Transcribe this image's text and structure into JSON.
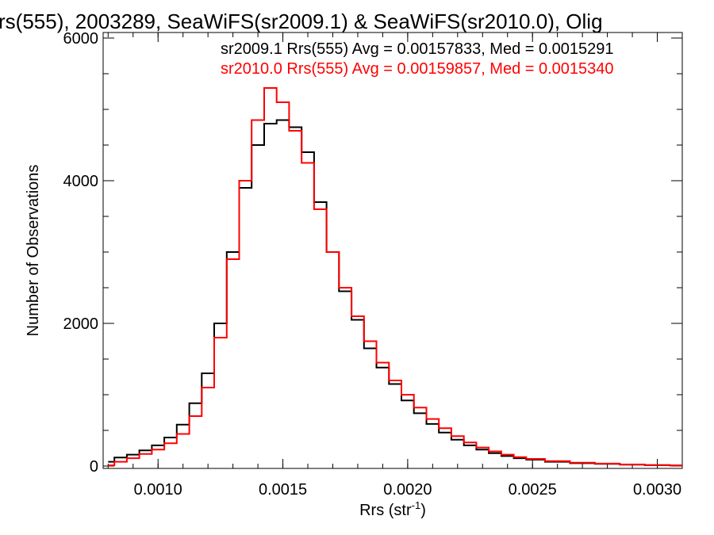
{
  "chart_data": {
    "type": "line",
    "title": "rs(555), 2003289, SeaWiFS(sr2009.1) & SeaWiFS(sr2010.0), Olig",
    "xlabel": "Rrs (str",
    "xlabel_sup": "-1",
    "xlabel_close": ")",
    "ylabel": "Number of Observations",
    "xlim": [
      0.00078,
      0.0031
    ],
    "ylim": [
      0,
      6000
    ],
    "x_ticks": [
      "0.0010",
      "0.0015",
      "0.0020",
      "0.0025",
      "0.0030"
    ],
    "x_tick_values": [
      0.001,
      0.0015,
      0.002,
      0.0025,
      0.003
    ],
    "y_ticks": [
      "0",
      "2000",
      "4000",
      "6000"
    ],
    "y_tick_values": [
      0,
      2000,
      4000,
      6000
    ],
    "grid": false,
    "annotations": [
      {
        "text": "sr2009.1 Rrs(555) Avg = 0.00157833, Med = 0.0015291",
        "color": "#000000"
      },
      {
        "text": "sr2010.0 Rrs(555) Avg = 0.00159857, Med = 0.0015340",
        "color": "#ff0000"
      }
    ],
    "series": [
      {
        "color": "#000000",
        "points": [
          [
            0.0008,
            60
          ],
          [
            0.00085,
            120
          ],
          [
            0.0009,
            160
          ],
          [
            0.00095,
            220
          ],
          [
            0.001,
            290
          ],
          [
            0.00105,
            400
          ],
          [
            0.0011,
            580
          ],
          [
            0.00115,
            880
          ],
          [
            0.0012,
            1300
          ],
          [
            0.00125,
            2000
          ],
          [
            0.0013,
            3000
          ],
          [
            0.00135,
            3900
          ],
          [
            0.0014,
            4500
          ],
          [
            0.00145,
            4800
          ],
          [
            0.0015,
            4850
          ],
          [
            0.00155,
            4750
          ],
          [
            0.0016,
            4400
          ],
          [
            0.00165,
            3700
          ],
          [
            0.0017,
            3000
          ],
          [
            0.00175,
            2450
          ],
          [
            0.0018,
            2050
          ],
          [
            0.00185,
            1650
          ],
          [
            0.0019,
            1380
          ],
          [
            0.00195,
            1150
          ],
          [
            0.002,
            920
          ],
          [
            0.00205,
            740
          ],
          [
            0.0021,
            590
          ],
          [
            0.00215,
            470
          ],
          [
            0.0022,
            370
          ],
          [
            0.00225,
            290
          ],
          [
            0.0023,
            230
          ],
          [
            0.00235,
            180
          ],
          [
            0.0024,
            140
          ],
          [
            0.00245,
            110
          ],
          [
            0.0025,
            90
          ],
          [
            0.0026,
            60
          ],
          [
            0.0027,
            40
          ],
          [
            0.0028,
            30
          ],
          [
            0.0029,
            20
          ],
          [
            0.003,
            12
          ],
          [
            0.0031,
            8
          ]
        ]
      },
      {
        "color": "#ff0000",
        "points": [
          [
            0.0008,
            10
          ],
          [
            0.00085,
            60
          ],
          [
            0.0009,
            110
          ],
          [
            0.00095,
            170
          ],
          [
            0.001,
            230
          ],
          [
            0.00105,
            320
          ],
          [
            0.0011,
            450
          ],
          [
            0.00115,
            700
          ],
          [
            0.0012,
            1100
          ],
          [
            0.00125,
            1800
          ],
          [
            0.0013,
            2900
          ],
          [
            0.00135,
            4000
          ],
          [
            0.0014,
            4850
          ],
          [
            0.00145,
            5300
          ],
          [
            0.0015,
            5100
          ],
          [
            0.00155,
            4700
          ],
          [
            0.0016,
            4250
          ],
          [
            0.00165,
            3600
          ],
          [
            0.0017,
            3000
          ],
          [
            0.00175,
            2500
          ],
          [
            0.0018,
            2100
          ],
          [
            0.00185,
            1750
          ],
          [
            0.0019,
            1450
          ],
          [
            0.00195,
            1200
          ],
          [
            0.002,
            1000
          ],
          [
            0.00205,
            820
          ],
          [
            0.0021,
            660
          ],
          [
            0.00215,
            530
          ],
          [
            0.0022,
            420
          ],
          [
            0.00225,
            330
          ],
          [
            0.0023,
            260
          ],
          [
            0.00235,
            205
          ],
          [
            0.0024,
            160
          ],
          [
            0.00245,
            125
          ],
          [
            0.0025,
            100
          ],
          [
            0.0026,
            70
          ],
          [
            0.0027,
            48
          ],
          [
            0.0028,
            34
          ],
          [
            0.0029,
            22
          ],
          [
            0.003,
            14
          ],
          [
            0.0031,
            9
          ]
        ]
      }
    ]
  }
}
